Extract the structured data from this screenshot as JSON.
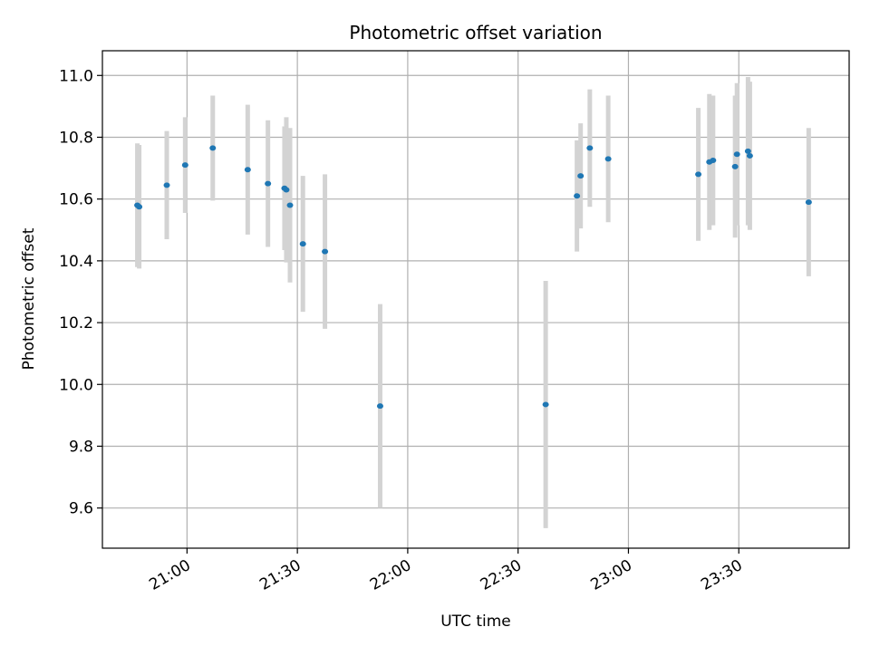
{
  "chart_data": {
    "type": "scatter",
    "title": "Photometric offset variation",
    "xlabel": "UTC time",
    "ylabel": "Photometric offset",
    "x_axis_type": "time",
    "x_time_unit": "HH:MM",
    "xlim": [
      "20:37",
      "24:00"
    ],
    "ylim": [
      9.47,
      11.08
    ],
    "grid": true,
    "x_ticks": [
      "21:00",
      "21:30",
      "22:00",
      "22:30",
      "23:00",
      "23:30"
    ],
    "y_ticks": [
      "9.6",
      "9.8",
      "10.0",
      "10.2",
      "10.4",
      "10.6",
      "10.8",
      "11.0"
    ],
    "marker_color": "#1f77b4",
    "errorbar_color": "#d3d3d3",
    "series": [
      {
        "points": [
          {
            "x": "20:46:30",
            "y": 10.58,
            "yerr": 0.2
          },
          {
            "x": "20:47:00",
            "y": 10.575,
            "yerr": 0.2
          },
          {
            "x": "20:54:30",
            "y": 10.645,
            "yerr": 0.175
          },
          {
            "x": "20:59:30",
            "y": 10.71,
            "yerr": 0.155
          },
          {
            "x": "21:07:00",
            "y": 10.765,
            "yerr": 0.17
          },
          {
            "x": "21:16:30",
            "y": 10.695,
            "yerr": 0.21
          },
          {
            "x": "21:22:00",
            "y": 10.65,
            "yerr": 0.205
          },
          {
            "x": "21:26:30",
            "y": 10.635,
            "yerr": 0.2
          },
          {
            "x": "21:27:00",
            "y": 10.63,
            "yerr": 0.235
          },
          {
            "x": "21:28:00",
            "y": 10.58,
            "yerr": 0.25
          },
          {
            "x": "21:31:30",
            "y": 10.455,
            "yerr": 0.22
          },
          {
            "x": "21:37:30",
            "y": 10.43,
            "yerr": 0.25
          },
          {
            "x": "21:52:30",
            "y": 9.93,
            "yerr": 0.33
          },
          {
            "x": "22:37:30",
            "y": 9.935,
            "yerr": 0.4
          },
          {
            "x": "22:46:00",
            "y": 10.61,
            "yerr": 0.18
          },
          {
            "x": "22:47:00",
            "y": 10.675,
            "yerr": 0.17
          },
          {
            "x": "22:49:30",
            "y": 10.765,
            "yerr": 0.19
          },
          {
            "x": "22:54:30",
            "y": 10.73,
            "yerr": 0.205
          },
          {
            "x": "23:19:00",
            "y": 10.68,
            "yerr": 0.215
          },
          {
            "x": "23:22:00",
            "y": 10.72,
            "yerr": 0.22
          },
          {
            "x": "23:23:00",
            "y": 10.725,
            "yerr": 0.21
          },
          {
            "x": "23:29:00",
            "y": 10.705,
            "yerr": 0.23
          },
          {
            "x": "23:29:30",
            "y": 10.745,
            "yerr": 0.23
          },
          {
            "x": "23:32:30",
            "y": 10.755,
            "yerr": 0.24
          },
          {
            "x": "23:33:00",
            "y": 10.74,
            "yerr": 0.24
          },
          {
            "x": "23:49:00",
            "y": 10.59,
            "yerr": 0.24
          }
        ]
      }
    ]
  }
}
